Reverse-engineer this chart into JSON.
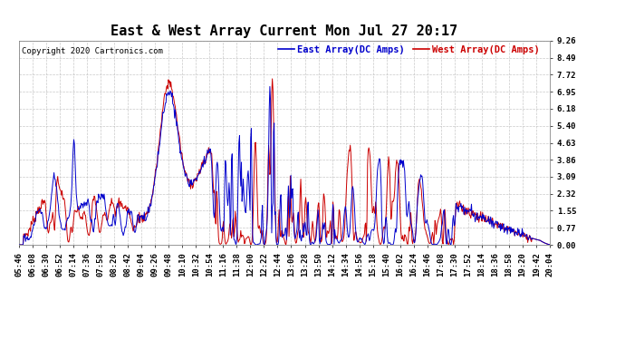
{
  "title": "East & West Array Current Mon Jul 27 20:17",
  "copyright": "Copyright 2020 Cartronics.com",
  "legend_east": "East Array(DC Amps)",
  "legend_west": "West Array(DC Amps)",
  "east_color": "#0000cc",
  "west_color": "#cc0000",
  "background_color": "#ffffff",
  "plot_bg_color": "#ffffff",
  "grid_color": "#bbbbbb",
  "ylim": [
    0.0,
    9.26
  ],
  "yticks": [
    0.0,
    0.77,
    1.55,
    2.32,
    3.09,
    3.86,
    4.63,
    5.4,
    6.18,
    6.95,
    7.72,
    8.49,
    9.26
  ],
  "xtick_labels": [
    "05:46",
    "06:08",
    "06:30",
    "06:52",
    "07:14",
    "07:36",
    "07:58",
    "08:20",
    "08:42",
    "09:04",
    "09:26",
    "09:48",
    "10:10",
    "10:32",
    "10:54",
    "11:16",
    "11:38",
    "12:00",
    "12:22",
    "12:44",
    "13:06",
    "13:28",
    "13:50",
    "14:12",
    "14:34",
    "14:56",
    "15:18",
    "15:40",
    "16:02",
    "16:24",
    "16:46",
    "17:08",
    "17:30",
    "17:52",
    "18:14",
    "18:36",
    "18:58",
    "19:20",
    "19:42",
    "20:04"
  ],
  "linewidth": 0.7,
  "title_fontsize": 11,
  "tick_fontsize": 6.5,
  "legend_fontsize": 7.5,
  "copyright_fontsize": 6.5
}
